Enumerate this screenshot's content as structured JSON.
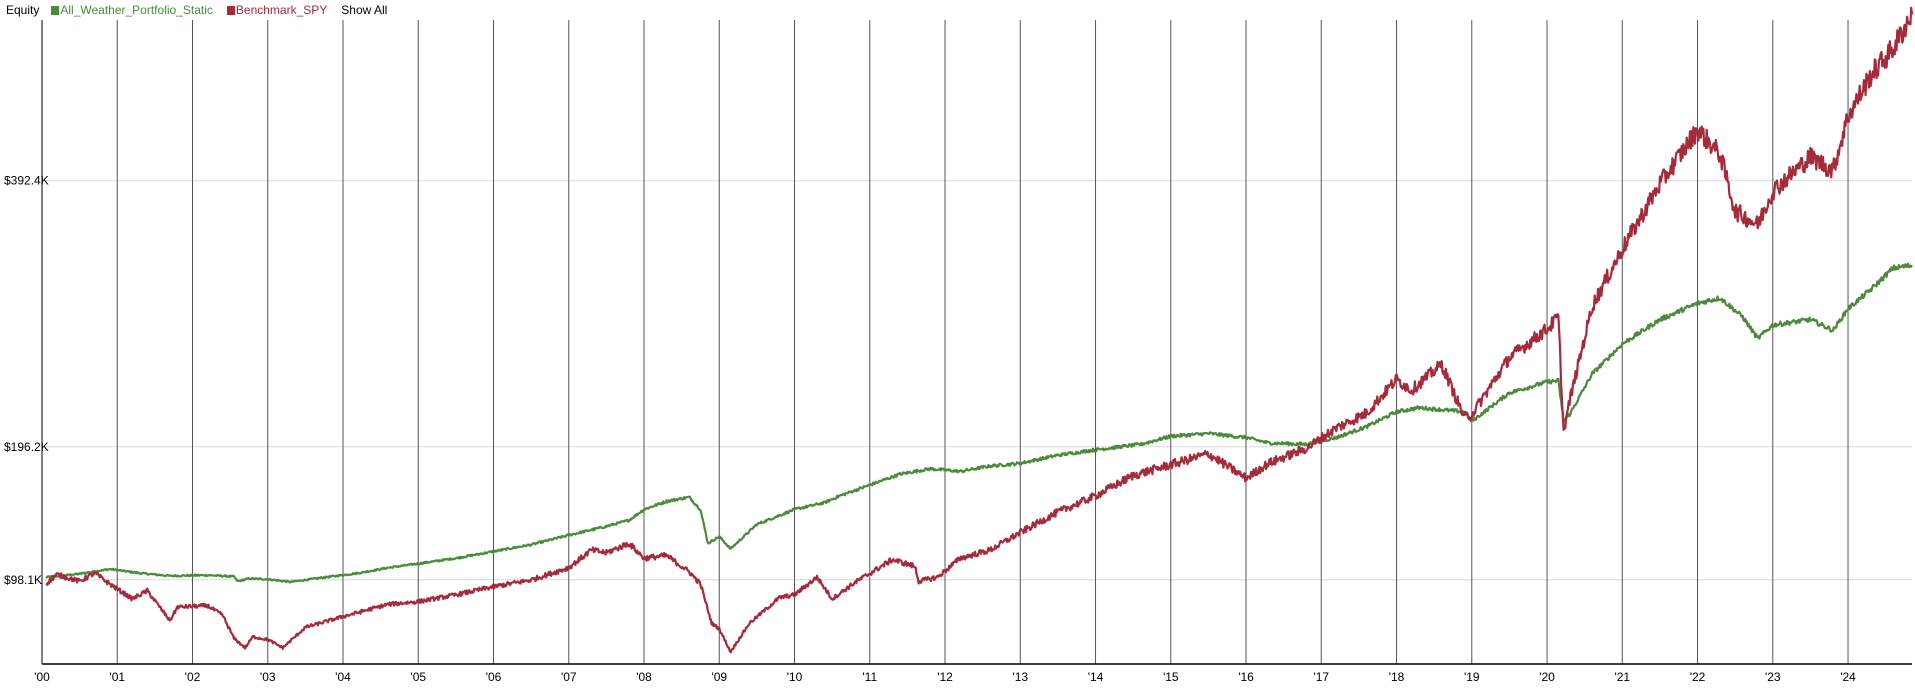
{
  "legend": {
    "title": "Equity",
    "show_all_label": "Show All"
  },
  "chart_data": {
    "type": "line",
    "title": "Equity",
    "xlabel": "",
    "ylabel": "",
    "x_axis": {
      "start": 2000.0,
      "end": 2024.85,
      "tick_labels": [
        "'00",
        "'01",
        "'02",
        "'03",
        "'04",
        "'05",
        "'06",
        "'07",
        "'08",
        "'09",
        "'10",
        "'11",
        "'12",
        "'13",
        "'14",
        "'15",
        "'16",
        "'17",
        "'18",
        "'19",
        "'20",
        "'21",
        "'22",
        "'23",
        "'24"
      ],
      "tick_years": [
        2000,
        2001,
        2002,
        2003,
        2004,
        2005,
        2006,
        2007,
        2008,
        2009,
        2010,
        2011,
        2012,
        2013,
        2014,
        2015,
        2016,
        2017,
        2018,
        2019,
        2020,
        2021,
        2022,
        2023,
        2024
      ],
      "vertical_gridlines": true
    },
    "y_axis": {
      "scale": "linear",
      "ylim": [
        36000,
        508000
      ],
      "ticks": [
        98100,
        196200,
        392400
      ],
      "tick_labels": [
        "$98.1K",
        "$196.2K",
        "$392.4K"
      ],
      "horizontal_gridlines": true
    },
    "legend_position": "top-left",
    "series": [
      {
        "name": "All_Weather_Portfolio_Static",
        "color": "#4a8a3a",
        "points": [
          [
            2000.05,
            100000
          ],
          [
            2000.5,
            102500
          ],
          [
            2000.9,
            106000
          ],
          [
            2001.3,
            103000
          ],
          [
            2001.7,
            101000
          ],
          [
            2002.2,
            101500
          ],
          [
            2002.55,
            100500
          ],
          [
            2002.6,
            97000
          ],
          [
            2002.75,
            99000
          ],
          [
            2003.0,
            98500
          ],
          [
            2003.3,
            96500
          ],
          [
            2003.7,
            99500
          ],
          [
            2004.2,
            103000
          ],
          [
            2004.6,
            107000
          ],
          [
            2005.0,
            110000
          ],
          [
            2005.5,
            114000
          ],
          [
            2006.0,
            119000
          ],
          [
            2006.5,
            124000
          ],
          [
            2007.0,
            131000
          ],
          [
            2007.5,
            137500
          ],
          [
            2007.8,
            142000
          ],
          [
            2008.0,
            150000
          ],
          [
            2008.3,
            156000
          ],
          [
            2008.6,
            159000
          ],
          [
            2008.75,
            150000
          ],
          [
            2008.85,
            125000
          ],
          [
            2009.0,
            130000
          ],
          [
            2009.15,
            121000
          ],
          [
            2009.5,
            139000
          ],
          [
            2010.0,
            150000
          ],
          [
            2010.4,
            155000
          ],
          [
            2010.6,
            160000
          ],
          [
            2011.0,
            168000
          ],
          [
            2011.4,
            176000
          ],
          [
            2011.8,
            180000
          ],
          [
            2012.2,
            178000
          ],
          [
            2012.6,
            182000
          ],
          [
            2013.0,
            184000
          ],
          [
            2013.5,
            190000
          ],
          [
            2014.0,
            194000
          ],
          [
            2014.6,
            198000
          ],
          [
            2015.0,
            204000
          ],
          [
            2015.5,
            206000
          ],
          [
            2016.0,
            203000
          ],
          [
            2016.3,
            199000
          ],
          [
            2016.8,
            198000
          ],
          [
            2017.2,
            203000
          ],
          [
            2017.6,
            211000
          ],
          [
            2018.0,
            222000
          ],
          [
            2018.3,
            225000
          ],
          [
            2018.9,
            222000
          ],
          [
            2019.0,
            215000
          ],
          [
            2019.5,
            236000
          ],
          [
            2020.0,
            244000
          ],
          [
            2020.15,
            245000
          ],
          [
            2020.22,
            215000
          ],
          [
            2020.3,
            220000
          ],
          [
            2020.6,
            250000
          ],
          [
            2021.0,
            272000
          ],
          [
            2021.5,
            290000
          ],
          [
            2022.0,
            302000
          ],
          [
            2022.3,
            306000
          ],
          [
            2022.6,
            292000
          ],
          [
            2022.8,
            276000
          ],
          [
            2023.0,
            286000
          ],
          [
            2023.5,
            290000
          ],
          [
            2023.8,
            282000
          ],
          [
            2024.0,
            298000
          ],
          [
            2024.3,
            312000
          ],
          [
            2024.6,
            328000
          ],
          [
            2024.85,
            330000
          ]
        ]
      },
      {
        "name": "Benchmark_SPY",
        "color": "#a52a3a",
        "points": [
          [
            2000.05,
            95000
          ],
          [
            2000.2,
            102000
          ],
          [
            2000.5,
            97000
          ],
          [
            2000.7,
            103000
          ],
          [
            2000.9,
            95000
          ],
          [
            2001.2,
            84000
          ],
          [
            2001.4,
            90000
          ],
          [
            2001.7,
            68000
          ],
          [
            2001.8,
            78000
          ],
          [
            2002.2,
            79000
          ],
          [
            2002.4,
            72000
          ],
          [
            2002.55,
            55000
          ],
          [
            2002.7,
            48000
          ],
          [
            2002.8,
            56000
          ],
          [
            2003.0,
            54000
          ],
          [
            2003.2,
            48000
          ],
          [
            2003.5,
            63000
          ],
          [
            2004.0,
            71000
          ],
          [
            2004.6,
            80000
          ],
          [
            2005.0,
            82000
          ],
          [
            2005.5,
            87000
          ],
          [
            2006.0,
            93000
          ],
          [
            2006.5,
            98000
          ],
          [
            2007.0,
            107000
          ],
          [
            2007.3,
            120000
          ],
          [
            2007.5,
            118000
          ],
          [
            2007.8,
            125000
          ],
          [
            2008.0,
            114000
          ],
          [
            2008.3,
            116000
          ],
          [
            2008.6,
            104000
          ],
          [
            2008.75,
            95000
          ],
          [
            2008.9,
            66000
          ],
          [
            2009.0,
            62000
          ],
          [
            2009.15,
            45000
          ],
          [
            2009.4,
            66000
          ],
          [
            2009.8,
            85000
          ],
          [
            2010.0,
            87000
          ],
          [
            2010.3,
            100000
          ],
          [
            2010.5,
            84000
          ],
          [
            2010.8,
            96000
          ],
          [
            2011.3,
            113000
          ],
          [
            2011.6,
            108000
          ],
          [
            2011.65,
            97000
          ],
          [
            2011.9,
            100000
          ],
          [
            2012.2,
            114000
          ],
          [
            2012.6,
            120000
          ],
          [
            2013.0,
            133000
          ],
          [
            2013.5,
            148000
          ],
          [
            2014.0,
            160000
          ],
          [
            2014.5,
            175000
          ],
          [
            2015.0,
            183000
          ],
          [
            2015.5,
            191000
          ],
          [
            2016.0,
            173000
          ],
          [
            2016.3,
            184000
          ],
          [
            2016.8,
            195000
          ],
          [
            2017.2,
            210000
          ],
          [
            2017.6,
            221000
          ],
          [
            2018.0,
            246000
          ],
          [
            2018.2,
            238000
          ],
          [
            2018.6,
            257000
          ],
          [
            2018.9,
            218000
          ],
          [
            2019.0,
            220000
          ],
          [
            2019.5,
            262000
          ],
          [
            2020.0,
            283000
          ],
          [
            2020.15,
            292000
          ],
          [
            2020.22,
            207000
          ],
          [
            2020.3,
            230000
          ],
          [
            2020.6,
            300000
          ],
          [
            2021.0,
            342000
          ],
          [
            2021.5,
            390000
          ],
          [
            2022.0,
            430000
          ],
          [
            2022.3,
            412000
          ],
          [
            2022.5,
            370000
          ],
          [
            2022.8,
            360000
          ],
          [
            2023.0,
            385000
          ],
          [
            2023.5,
            410000
          ],
          [
            2023.8,
            400000
          ],
          [
            2024.0,
            440000
          ],
          [
            2024.3,
            470000
          ],
          [
            2024.6,
            490000
          ],
          [
            2024.85,
            515000
          ]
        ]
      }
    ]
  }
}
